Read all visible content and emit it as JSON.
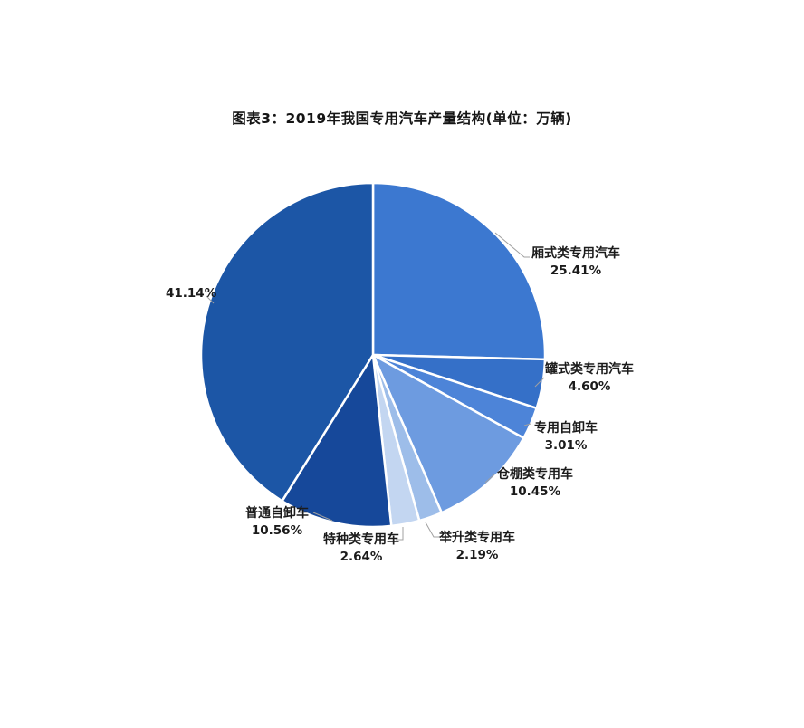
{
  "title": "图表3：2019年我国专用汽车产量结构(单位：万辆)",
  "chart_data": {
    "type": "pie",
    "title": "图表3：2019年我国专用汽车产量结构(单位：万辆)",
    "unit": "万辆",
    "start_angle_deg": 0,
    "direction": "clockwise",
    "legend": "none",
    "slice_border_color": "#FFFFFF",
    "leader_line_color": "#A0A0A0",
    "slices": [
      {
        "label": "厢式类专用汽车",
        "value": 25.41,
        "pct_label": "25.41%",
        "color": "#3C78D0"
      },
      {
        "label": "罐式类专用汽车",
        "value": 4.6,
        "pct_label": "4.60%",
        "color": "#3570C8"
      },
      {
        "label": "专用自卸车",
        "value": 3.01,
        "pct_label": "3.01%",
        "color": "#4D84D8"
      },
      {
        "label": "仓棚类专用车",
        "value": 10.45,
        "pct_label": "10.45%",
        "color": "#6D9BE0"
      },
      {
        "label": "举升类专用车",
        "value": 2.19,
        "pct_label": "2.19%",
        "color": "#9DBDE9"
      },
      {
        "label": "特种类专用车",
        "value": 2.64,
        "pct_label": "2.64%",
        "color": "#C3D6F1"
      },
      {
        "label": "普通自卸车",
        "value": 10.56,
        "pct_label": "10.56%",
        "color": "#16489A"
      },
      {
        "label": "",
        "value": 41.14,
        "pct_label": "41.14%",
        "color": "#1C56A6"
      }
    ]
  }
}
